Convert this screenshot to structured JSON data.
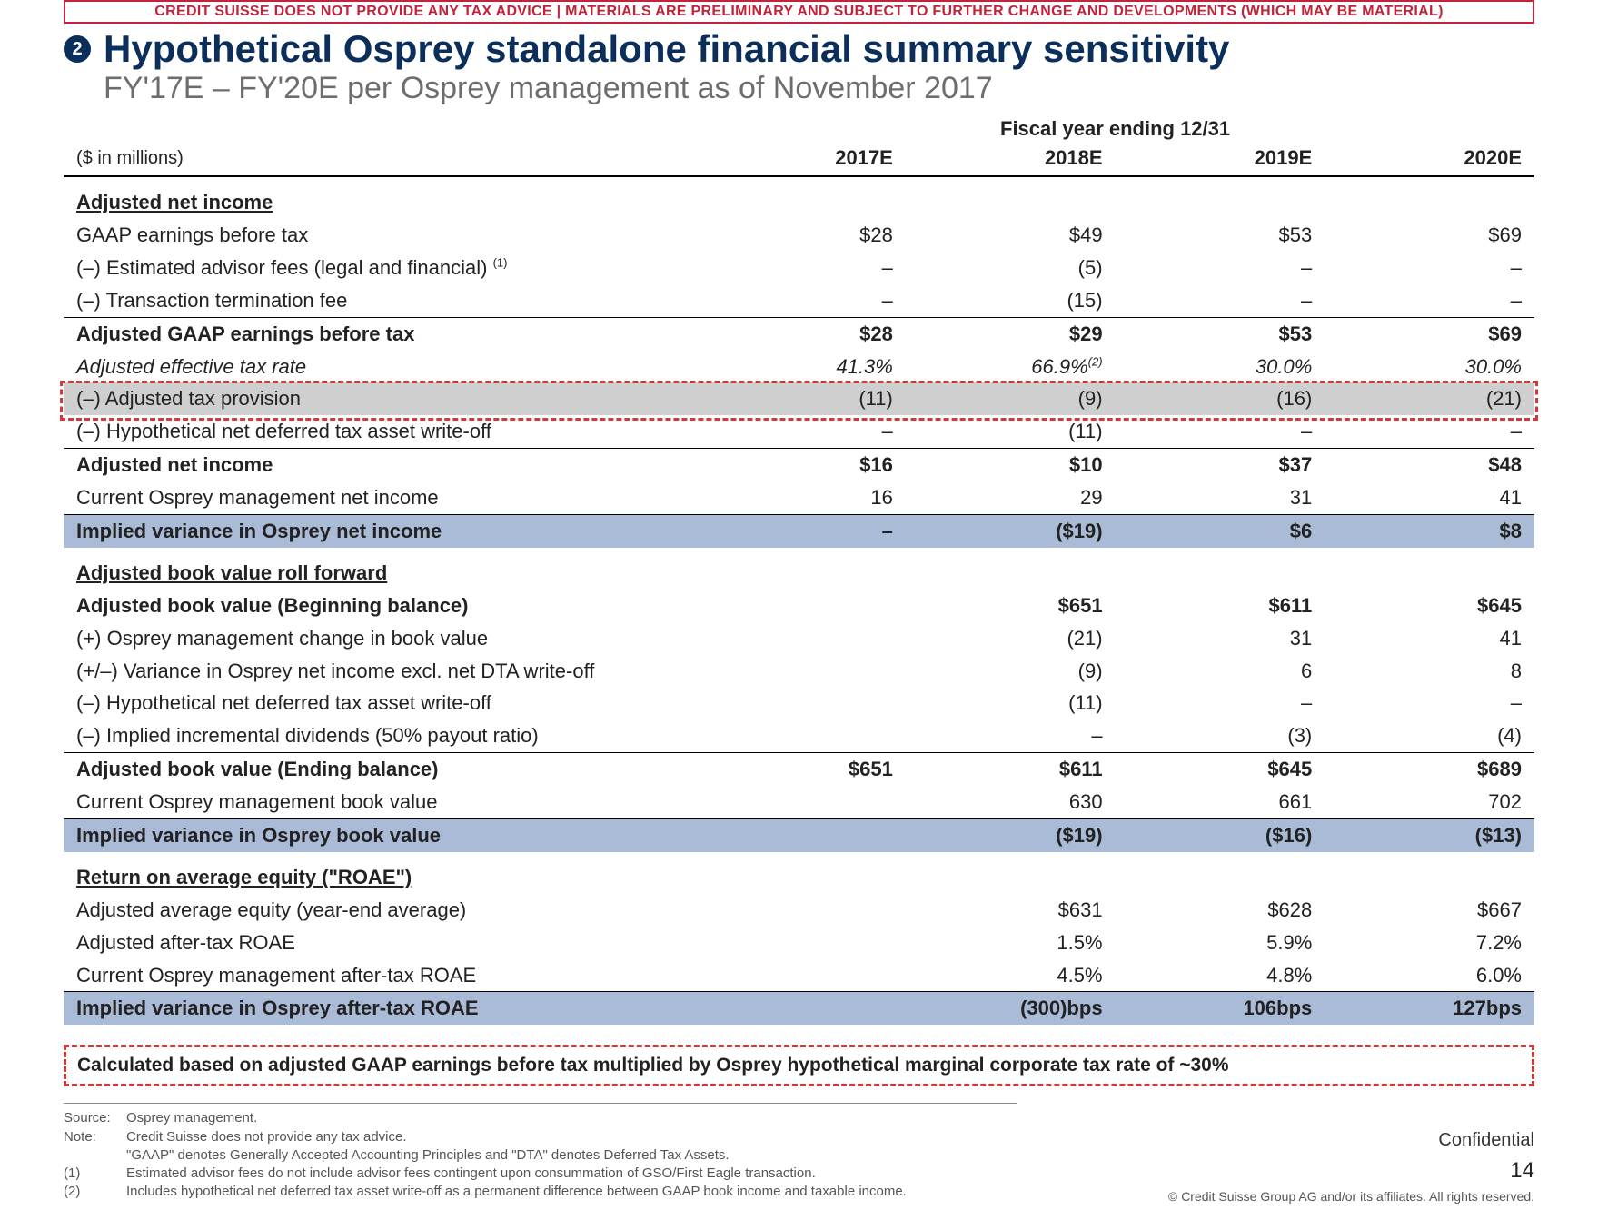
{
  "disclaimer": "CREDIT SUISSE DOES NOT PROVIDE ANY TAX ADVICE | MATERIALS ARE PRELIMINARY AND SUBJECT TO FURTHER CHANGE AND DEVELOPMENTS (WHICH MAY BE MATERIAL)",
  "bullet_num": "2",
  "title": "Hypothetical Osprey standalone financial summary sensitivity",
  "subtitle": "FY'17E – FY'20E per Osprey management as of November 2017",
  "fy_header": "Fiscal year ending 12/31",
  "unit_label": "($ in millions)",
  "years": {
    "y1": "2017E",
    "y2": "2018E",
    "y3": "2019E",
    "y4": "2020E"
  },
  "sec1": "Adjusted net income",
  "r1": {
    "l": "GAAP earnings before tax",
    "v": [
      "$28",
      "$49",
      "$53",
      "$69"
    ]
  },
  "r2": {
    "l": "(–) Estimated advisor fees (legal and financial)",
    "sup": "(1)",
    "v": [
      "–",
      "(5)",
      "–",
      "–"
    ]
  },
  "r3": {
    "l": "(–) Transaction termination fee",
    "v": [
      "–",
      "(15)",
      "–",
      "–"
    ]
  },
  "r4": {
    "l": "Adjusted GAAP earnings before tax",
    "v": [
      "$28",
      "$29",
      "$53",
      "$69"
    ]
  },
  "r5": {
    "l": "Adjusted effective tax rate",
    "v": [
      "41.3%",
      "66.9%",
      "30.0%",
      "30.0%"
    ],
    "sup2": "(2)"
  },
  "r6": {
    "l": "(–) Adjusted tax provision",
    "v": [
      "(11)",
      "(9)",
      "(16)",
      "(21)"
    ]
  },
  "r7": {
    "l": "(–) Hypothetical net deferred tax asset write-off",
    "v": [
      "–",
      "(11)",
      "–",
      "–"
    ]
  },
  "r8": {
    "l": "Adjusted net income",
    "v": [
      "$16",
      "$10",
      "$37",
      "$48"
    ]
  },
  "r9": {
    "l": "Current Osprey management net income",
    "v": [
      "16",
      "29",
      "31",
      "41"
    ]
  },
  "r10": {
    "l": "Implied variance in Osprey net income",
    "v": [
      "–",
      "($19)",
      "$6",
      "$8"
    ]
  },
  "sec2": "Adjusted book value roll forward",
  "r11": {
    "l": "Adjusted book value (Beginning balance)",
    "v": [
      "",
      "$651",
      "$611",
      "$645"
    ]
  },
  "r12": {
    "l": "(+) Osprey management change in book value",
    "v": [
      "",
      "(21)",
      "31",
      "41"
    ]
  },
  "r13": {
    "l": "(+/–) Variance in Osprey net income excl. net DTA write-off",
    "v": [
      "",
      "(9)",
      "6",
      "8"
    ]
  },
  "r14": {
    "l": "(–) Hypothetical net deferred tax asset write-off",
    "v": [
      "",
      "(11)",
      "–",
      "–"
    ]
  },
  "r15": {
    "l": "(–) Implied incremental dividends (50% payout ratio)",
    "v": [
      "",
      "–",
      "(3)",
      "(4)"
    ]
  },
  "r16": {
    "l": "Adjusted book value (Ending balance)",
    "v": [
      "$651",
      "$611",
      "$645",
      "$689"
    ]
  },
  "r17": {
    "l": "Current Osprey management book value",
    "v": [
      "",
      "630",
      "661",
      "702"
    ]
  },
  "r18": {
    "l": "Implied variance in Osprey book value",
    "v": [
      "",
      "($19)",
      "($16)",
      "($13)"
    ]
  },
  "sec3": "Return on average equity (\"ROAE\")",
  "r19": {
    "l": "Adjusted average equity (year-end average)",
    "v": [
      "",
      "$631",
      "$628",
      "$667"
    ]
  },
  "r20": {
    "l": "Adjusted after-tax ROAE",
    "v": [
      "",
      "1.5%",
      "5.9%",
      "7.2%"
    ]
  },
  "r21": {
    "l": "Current Osprey management after-tax ROAE",
    "v": [
      "",
      "4.5%",
      "4.8%",
      "6.0%"
    ]
  },
  "r22": {
    "l": "Implied variance in Osprey after-tax ROAE",
    "v": [
      "",
      "(300)bps",
      "106bps",
      "127bps"
    ]
  },
  "calc_note": "Calculated based on adjusted GAAP earnings before tax multiplied by Osprey hypothetical marginal corporate tax rate of ~30%",
  "footnotes": {
    "source": {
      "tag": "Source:",
      "text": "Osprey management."
    },
    "note": {
      "tag": "Note:",
      "text1": "Credit Suisse does not provide any tax advice.",
      "text2": "\"GAAP\" denotes Generally Accepted Accounting Principles and \"DTA\" denotes Deferred Tax Assets."
    },
    "f1": {
      "tag": "(1)",
      "text": "Estimated advisor fees do not include advisor fees contingent upon consummation of GSO/First Eagle transaction."
    },
    "f2": {
      "tag": "(2)",
      "text": "Includes hypothetical net deferred tax asset write-off as a permanent difference between GAAP book income and taxable income."
    }
  },
  "confidential": "Confidential",
  "page_number": "14",
  "copyright": "© Credit Suisse Group AG and/or its affiliates. All rights reserved.",
  "colors": {
    "brand_red": "#c0233b",
    "brand_navy": "#0b2f5a",
    "band_blue": "#a9bbd6",
    "band_grey": "#cfcfcf",
    "dash_red": "#d23a3a"
  }
}
